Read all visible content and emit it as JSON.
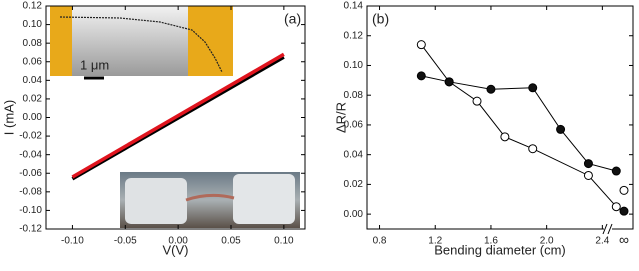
{
  "chart_data": [
    {
      "type": "line",
      "tag": "(a)",
      "x_label": "V(V)",
      "y_label": "I (mA)",
      "inset_scale_label": "1 μm",
      "xlim": [
        -0.125,
        0.12
      ],
      "ylim": [
        -0.12,
        0.12
      ],
      "xticks": [
        {
          "value": -0.1,
          "label": "-0.10"
        },
        {
          "value": -0.05,
          "label": "-0.05"
        },
        {
          "value": 0,
          "label": "0.00"
        },
        {
          "value": 0.05,
          "label": "0.05"
        },
        {
          "value": 0.1,
          "label": "0.10"
        }
      ],
      "yticks": [
        {
          "value": -0.12,
          "label": "-0.12"
        },
        {
          "value": -0.1,
          "label": "-0.10"
        },
        {
          "value": -0.08,
          "label": "-0.08"
        },
        {
          "value": -0.06,
          "label": "-0.06"
        },
        {
          "value": -0.04,
          "label": "-0.04"
        },
        {
          "value": -0.02,
          "label": "-0.02"
        },
        {
          "value": 0,
          "label": "0.00"
        },
        {
          "value": 0.02,
          "label": "0.02"
        },
        {
          "value": 0.04,
          "label": "0.04"
        },
        {
          "value": 0.06,
          "label": "0.06"
        },
        {
          "value": 0.08,
          "label": "0.08"
        },
        {
          "value": 0.1,
          "label": "0.10"
        },
        {
          "value": 0.12,
          "label": "0.12"
        }
      ],
      "series": [
        {
          "color": "#000000",
          "x": [
            -0.1,
            0.1
          ],
          "values": [
            -0.066,
            0.065
          ]
        },
        {
          "color": "#e0141e",
          "x": [
            -0.1,
            0.1
          ],
          "values": [
            -0.064,
            0.068
          ]
        }
      ]
    },
    {
      "type": "scatter-line",
      "tag": "(b)",
      "x_label": "Bending diameter (cm)",
      "y_label": "ΔR/R",
      "break_category": "∞",
      "xlim": [
        0.71,
        2.62
      ],
      "ylim": [
        -0.01,
        0.14
      ],
      "xticks": [
        0.8,
        1.2,
        1.6,
        {
          "value": 2,
          "label": "2.0"
        },
        2.4
      ],
      "yticks": [
        {
          "value": 0,
          "label": "0.00"
        },
        {
          "value": 0.02,
          "label": "0.02"
        },
        {
          "value": 0.04,
          "label": "0.04"
        },
        {
          "value": 0.06,
          "label": "0.06"
        },
        {
          "value": 0.08,
          "label": "0.08"
        },
        {
          "value": 0.1,
          "label": "0.10"
        },
        {
          "value": 0.12,
          "label": "0.12"
        },
        {
          "value": 0.14,
          "label": "0.14"
        }
      ],
      "series": [
        {
          "color": "#ffffff",
          "x": [
            1.1,
            1.3,
            1.5,
            1.7,
            1.9,
            2.3,
            2.5
          ],
          "values": [
            0.114,
            0.089,
            0.076,
            0.052,
            0.044,
            0.026,
            0.005
          ],
          "break_value": 0.016
        },
        {
          "color": "#111111",
          "x": [
            1.1,
            1.3,
            1.6,
            1.9,
            2.1,
            2.3,
            2.5
          ],
          "values": [
            0.093,
            0.089,
            0.084,
            0.085,
            0.057,
            0.034,
            0.029
          ],
          "break_value": 0.002
        }
      ]
    }
  ]
}
